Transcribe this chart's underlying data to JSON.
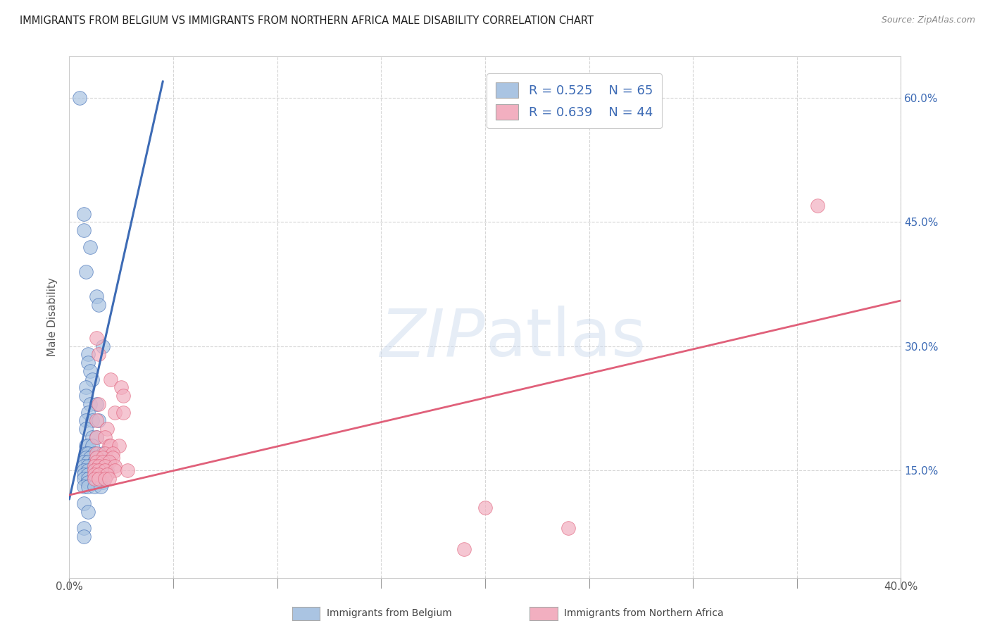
{
  "title": "IMMIGRANTS FROM BELGIUM VS IMMIGRANTS FROM NORTHERN AFRICA MALE DISABILITY CORRELATION CHART",
  "source": "Source: ZipAtlas.com",
  "ylabel": "Male Disability",
  "x_range": [
    0.0,
    0.4
  ],
  "y_range": [
    0.02,
    0.65
  ],
  "legend_r1": "R = 0.525",
  "legend_n1": "N = 65",
  "legend_r2": "R = 0.639",
  "legend_n2": "N = 44",
  "color_blue": "#aac4e2",
  "color_pink": "#f2afc0",
  "line_blue": "#3d6bb5",
  "line_pink": "#e0607a",
  "legend_text_color": "#3d6bb5",
  "blue_scatter": [
    [
      0.005,
      0.6
    ],
    [
      0.007,
      0.46
    ],
    [
      0.007,
      0.44
    ],
    [
      0.01,
      0.42
    ],
    [
      0.008,
      0.39
    ],
    [
      0.013,
      0.36
    ],
    [
      0.014,
      0.35
    ],
    [
      0.016,
      0.3
    ],
    [
      0.009,
      0.29
    ],
    [
      0.009,
      0.28
    ],
    [
      0.01,
      0.27
    ],
    [
      0.011,
      0.26
    ],
    [
      0.008,
      0.25
    ],
    [
      0.008,
      0.24
    ],
    [
      0.01,
      0.23
    ],
    [
      0.013,
      0.23
    ],
    [
      0.009,
      0.22
    ],
    [
      0.008,
      0.21
    ],
    [
      0.011,
      0.21
    ],
    [
      0.014,
      0.21
    ],
    [
      0.008,
      0.2
    ],
    [
      0.011,
      0.19
    ],
    [
      0.013,
      0.19
    ],
    [
      0.008,
      0.18
    ],
    [
      0.009,
      0.18
    ],
    [
      0.011,
      0.18
    ],
    [
      0.008,
      0.17
    ],
    [
      0.009,
      0.17
    ],
    [
      0.012,
      0.17
    ],
    [
      0.016,
      0.17
    ],
    [
      0.008,
      0.165
    ],
    [
      0.01,
      0.165
    ],
    [
      0.013,
      0.165
    ],
    [
      0.007,
      0.16
    ],
    [
      0.009,
      0.16
    ],
    [
      0.012,
      0.16
    ],
    [
      0.015,
      0.16
    ],
    [
      0.018,
      0.16
    ],
    [
      0.007,
      0.155
    ],
    [
      0.009,
      0.155
    ],
    [
      0.012,
      0.155
    ],
    [
      0.015,
      0.155
    ],
    [
      0.007,
      0.15
    ],
    [
      0.009,
      0.15
    ],
    [
      0.012,
      0.15
    ],
    [
      0.015,
      0.15
    ],
    [
      0.018,
      0.15
    ],
    [
      0.007,
      0.145
    ],
    [
      0.009,
      0.145
    ],
    [
      0.012,
      0.145
    ],
    [
      0.007,
      0.14
    ],
    [
      0.009,
      0.14
    ],
    [
      0.012,
      0.14
    ],
    [
      0.015,
      0.14
    ],
    [
      0.009,
      0.135
    ],
    [
      0.012,
      0.135
    ],
    [
      0.016,
      0.135
    ],
    [
      0.007,
      0.13
    ],
    [
      0.009,
      0.13
    ],
    [
      0.012,
      0.13
    ],
    [
      0.015,
      0.13
    ],
    [
      0.007,
      0.11
    ],
    [
      0.009,
      0.1
    ],
    [
      0.007,
      0.08
    ],
    [
      0.007,
      0.07
    ]
  ],
  "pink_scatter": [
    [
      0.36,
      0.47
    ],
    [
      0.013,
      0.31
    ],
    [
      0.014,
      0.29
    ],
    [
      0.02,
      0.26
    ],
    [
      0.025,
      0.25
    ],
    [
      0.026,
      0.24
    ],
    [
      0.014,
      0.23
    ],
    [
      0.022,
      0.22
    ],
    [
      0.026,
      0.22
    ],
    [
      0.013,
      0.21
    ],
    [
      0.018,
      0.2
    ],
    [
      0.013,
      0.19
    ],
    [
      0.017,
      0.19
    ],
    [
      0.019,
      0.18
    ],
    [
      0.02,
      0.18
    ],
    [
      0.024,
      0.18
    ],
    [
      0.013,
      0.17
    ],
    [
      0.017,
      0.17
    ],
    [
      0.021,
      0.17
    ],
    [
      0.013,
      0.165
    ],
    [
      0.016,
      0.165
    ],
    [
      0.021,
      0.165
    ],
    [
      0.013,
      0.16
    ],
    [
      0.016,
      0.16
    ],
    [
      0.019,
      0.16
    ],
    [
      0.012,
      0.155
    ],
    [
      0.014,
      0.155
    ],
    [
      0.017,
      0.155
    ],
    [
      0.022,
      0.155
    ],
    [
      0.012,
      0.15
    ],
    [
      0.014,
      0.15
    ],
    [
      0.017,
      0.15
    ],
    [
      0.022,
      0.15
    ],
    [
      0.028,
      0.15
    ],
    [
      0.012,
      0.145
    ],
    [
      0.014,
      0.145
    ],
    [
      0.018,
      0.145
    ],
    [
      0.012,
      0.14
    ],
    [
      0.014,
      0.14
    ],
    [
      0.017,
      0.14
    ],
    [
      0.019,
      0.14
    ],
    [
      0.2,
      0.105
    ],
    [
      0.24,
      0.08
    ],
    [
      0.19,
      0.055
    ]
  ],
  "blue_trendline_x": [
    0.0,
    0.045
  ],
  "blue_trendline_y": [
    0.115,
    0.62
  ],
  "pink_trendline_x": [
    0.0,
    0.4
  ],
  "pink_trendline_y": [
    0.12,
    0.355
  ],
  "y_tick_positions": [
    0.15,
    0.3,
    0.45,
    0.6
  ],
  "y_tick_labels": [
    "15.0%",
    "30.0%",
    "45.0%",
    "60.0%"
  ],
  "x_tick_positions": [
    0.0,
    0.05,
    0.1,
    0.15,
    0.2,
    0.25,
    0.3,
    0.35,
    0.4
  ],
  "x_tick_labels": [
    "0.0%",
    "",
    "",
    "",
    "",
    "",
    "",
    "",
    "40.0%"
  ]
}
